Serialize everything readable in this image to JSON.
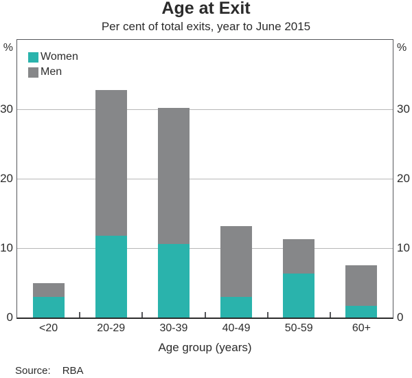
{
  "title": "Age at Exit",
  "subtitle": "Per cent of total exits, year to June 2015",
  "footer": {
    "source_label": "Source:",
    "source_value": "RBA"
  },
  "chart_data": {
    "type": "bar",
    "stacked": true,
    "title": "Age at Exit",
    "subtitle": "Per cent of total exits, year to June 2015",
    "categories": [
      "<20",
      "20-29",
      "30-39",
      "40-49",
      "50-59",
      "60+"
    ],
    "series": [
      {
        "name": "Women",
        "color": "#2ab3ac",
        "values": [
          3.0,
          11.8,
          10.6,
          3.0,
          6.3,
          1.7
        ]
      },
      {
        "name": "Men",
        "color": "#868789",
        "values": [
          2.0,
          21.0,
          19.6,
          10.2,
          5.0,
          5.8
        ]
      }
    ],
    "totals": [
      5.0,
      32.8,
      30.2,
      13.2,
      11.3,
      7.5
    ],
    "xlabel": "Age group (years)",
    "unit_label": "%",
    "ylim": [
      0,
      40
    ],
    "yticks": [
      0,
      10,
      20,
      30
    ],
    "grid": true,
    "gridline_color": "#b7b7b7",
    "legend_position": "top-left",
    "source": "RBA"
  }
}
